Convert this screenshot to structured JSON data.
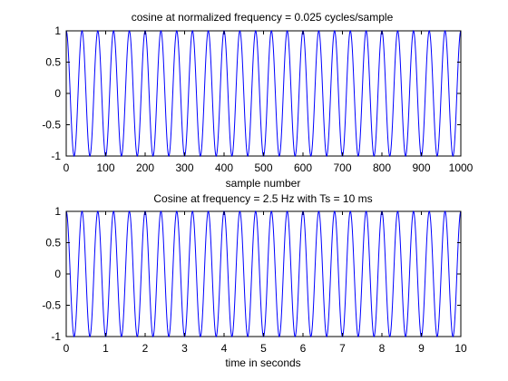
{
  "figure": {
    "background": "#ffffff",
    "axes_color": "#000000",
    "line_color": "#0000ff"
  },
  "chart_data": [
    {
      "type": "line",
      "title": "cosine at normalized frequency = 0.025 cycles/sample",
      "xlabel": "sample number",
      "ylabel": "",
      "xlim": [
        0,
        1000
      ],
      "ylim": [
        -1,
        1
      ],
      "xticks": [
        0,
        100,
        200,
        300,
        400,
        500,
        600,
        700,
        800,
        900,
        1000
      ],
      "xtick_labels": [
        "0",
        "100",
        "200",
        "300",
        "400",
        "500",
        "600",
        "700",
        "800",
        "900",
        "1000"
      ],
      "yticks": [
        -1,
        -0.5,
        0,
        0.5,
        1
      ],
      "ytick_labels": [
        "-1",
        "-0.5",
        "0",
        "0.5",
        "1"
      ],
      "grid": false,
      "series": [
        {
          "function": "cos",
          "amplitude": 1,
          "frequency": 0.025,
          "x_start": 0,
          "x_end": 1000,
          "x_step": 1
        }
      ]
    },
    {
      "type": "line",
      "title": "Cosine at frequency = 2.5 Hz with Ts = 10 ms",
      "xlabel": "time in seconds",
      "ylabel": "",
      "xlim": [
        0,
        10
      ],
      "ylim": [
        -1,
        1
      ],
      "xticks": [
        0,
        1,
        2,
        3,
        4,
        5,
        6,
        7,
        8,
        9,
        10
      ],
      "xtick_labels": [
        "0",
        "1",
        "2",
        "3",
        "4",
        "5",
        "6",
        "7",
        "8",
        "9",
        "10"
      ],
      "yticks": [
        -1,
        -0.5,
        0,
        0.5,
        1
      ],
      "ytick_labels": [
        "-1",
        "-0.5",
        "0",
        "0.5",
        "1"
      ],
      "grid": false,
      "series": [
        {
          "function": "cos",
          "amplitude": 1,
          "frequency": 2.5,
          "x_start": 0,
          "x_end": 10,
          "x_step": 0.01
        }
      ]
    }
  ]
}
